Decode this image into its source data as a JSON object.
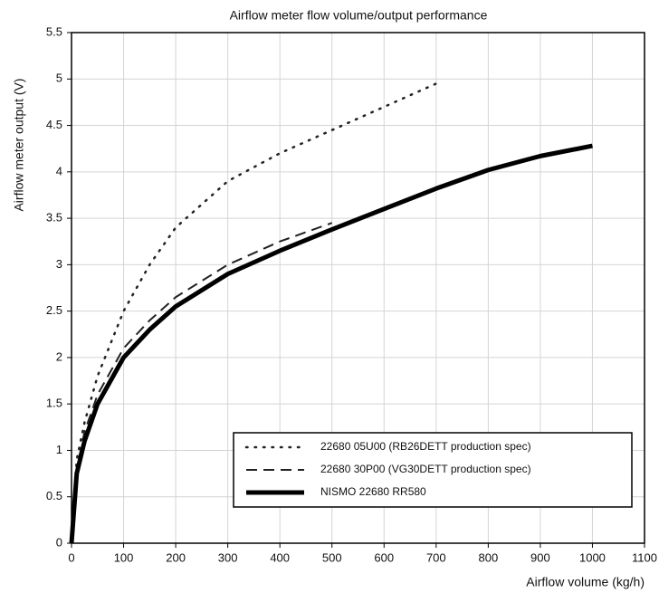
{
  "chart_data": {
    "type": "line",
    "title": "Airflow meter flow volume/output performance",
    "x_label": "Airflow volume (kg/h)",
    "y_label": "Airflow meter output (V)",
    "xlim": [
      0,
      1100
    ],
    "xticks": [
      0,
      100,
      200,
      300,
      400,
      500,
      600,
      700,
      800,
      900,
      1000,
      1100
    ],
    "ylim": [
      0,
      5.5
    ],
    "yticks": [
      0,
      0.5,
      1,
      1.5,
      2,
      2.5,
      3,
      3.5,
      4,
      4.5,
      5,
      5.5
    ],
    "grid": true,
    "legend": "lower right",
    "series": [
      {
        "name": "22680 05U00 (RB26DETT production spec)",
        "color": "#222222",
        "line_style": "dotted",
        "x": [
          0,
          10,
          25,
          50,
          100,
          150,
          200,
          300,
          400,
          500,
          600,
          700
        ],
        "values": [
          0,
          0.9,
          1.3,
          1.8,
          2.5,
          3.0,
          3.4,
          3.9,
          4.2,
          4.45,
          4.7,
          4.95
        ]
      },
      {
        "name": "22680 30P00 (VG30DETT production spec)",
        "color": "#222222",
        "line_style": "dashed",
        "x": [
          0,
          10,
          25,
          50,
          100,
          150,
          200,
          300,
          400,
          500
        ],
        "values": [
          0,
          0.8,
          1.2,
          1.6,
          2.1,
          2.4,
          2.65,
          3.0,
          3.25,
          3.45
        ]
      },
      {
        "name": "NISMO 22680 RR580",
        "color": "#000000",
        "line_style": "solid",
        "x": [
          0,
          10,
          25,
          50,
          100,
          150,
          200,
          300,
          400,
          500,
          600,
          700,
          800,
          900,
          1000
        ],
        "values": [
          0,
          0.75,
          1.1,
          1.5,
          2.0,
          2.3,
          2.55,
          2.9,
          3.15,
          3.38,
          3.6,
          3.82,
          4.02,
          4.17,
          4.28
        ]
      }
    ]
  }
}
